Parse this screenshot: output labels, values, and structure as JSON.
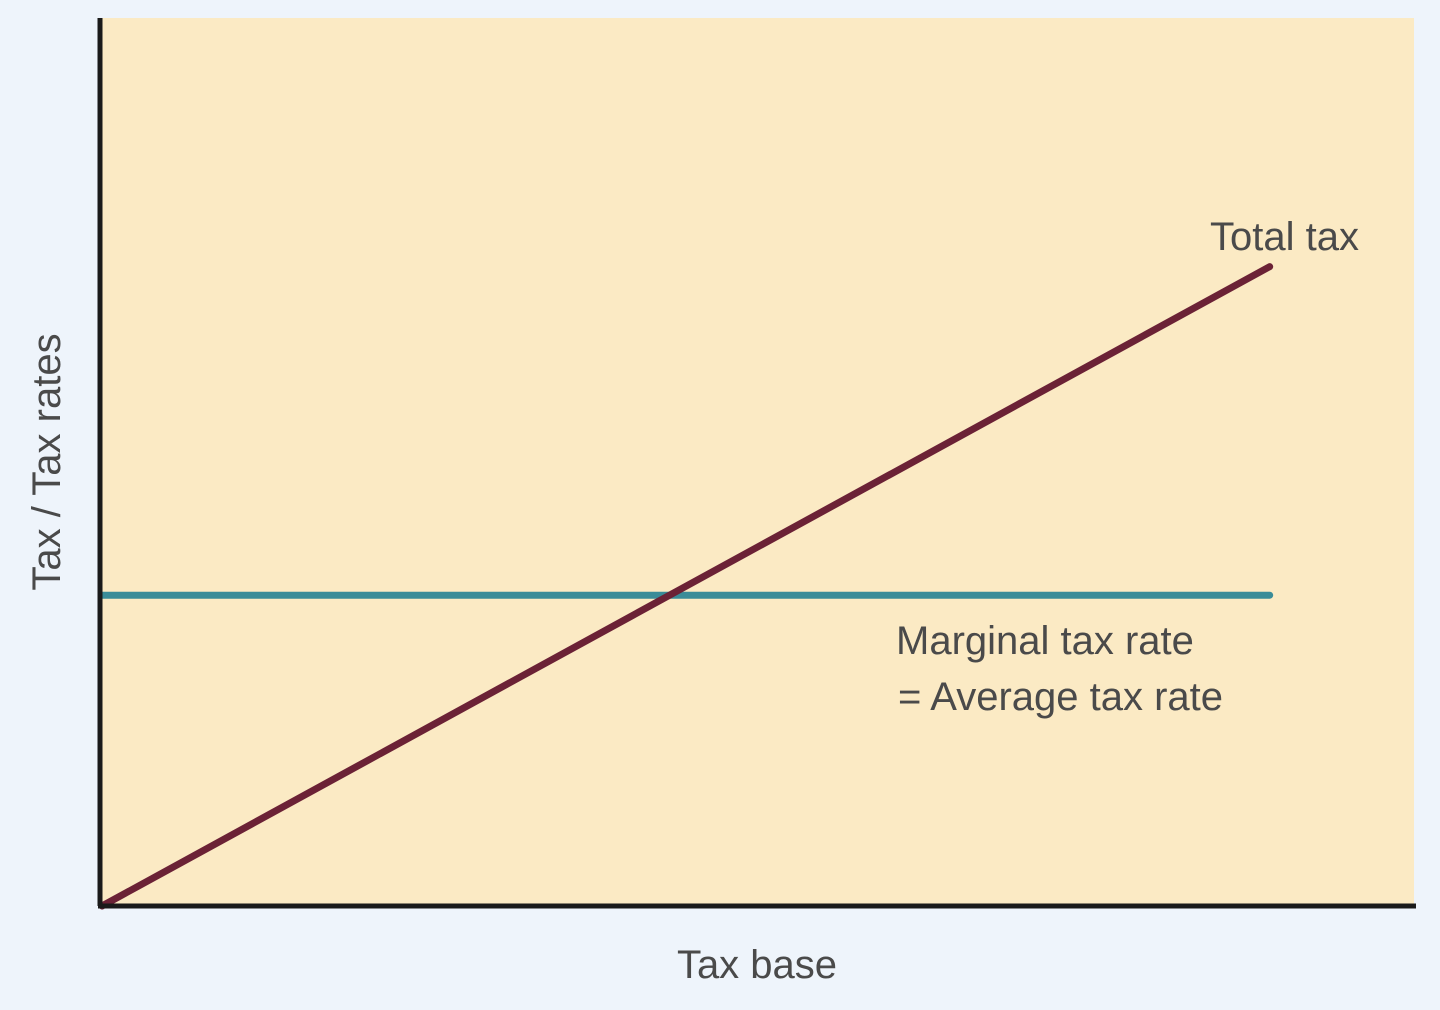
{
  "chart_data": {
    "type": "line",
    "title": "",
    "xlabel": "Tax base",
    "ylabel": "Tax / Tax rates",
    "xlim": [
      0,
      1
    ],
    "ylim": [
      0,
      1
    ],
    "grid": false,
    "legend": "none",
    "series": [
      {
        "name": "Total tax",
        "color": "#6b2236",
        "x": [
          0,
          0.89
        ],
        "y": [
          0,
          0.72
        ]
      },
      {
        "name": "Marginal tax rate = Average tax rate",
        "color": "#3a8c98",
        "x": [
          0,
          0.89
        ],
        "y": [
          0.35,
          0.35
        ]
      }
    ],
    "annotations": {
      "total_tax": "Total tax",
      "marginal_line1": "Marginal tax rate",
      "marginal_line2": "= Average tax rate"
    },
    "colors": {
      "plot_background": "#fbeac4",
      "axis": "#1a1a1a",
      "outer_background": "#eef4fb"
    }
  }
}
